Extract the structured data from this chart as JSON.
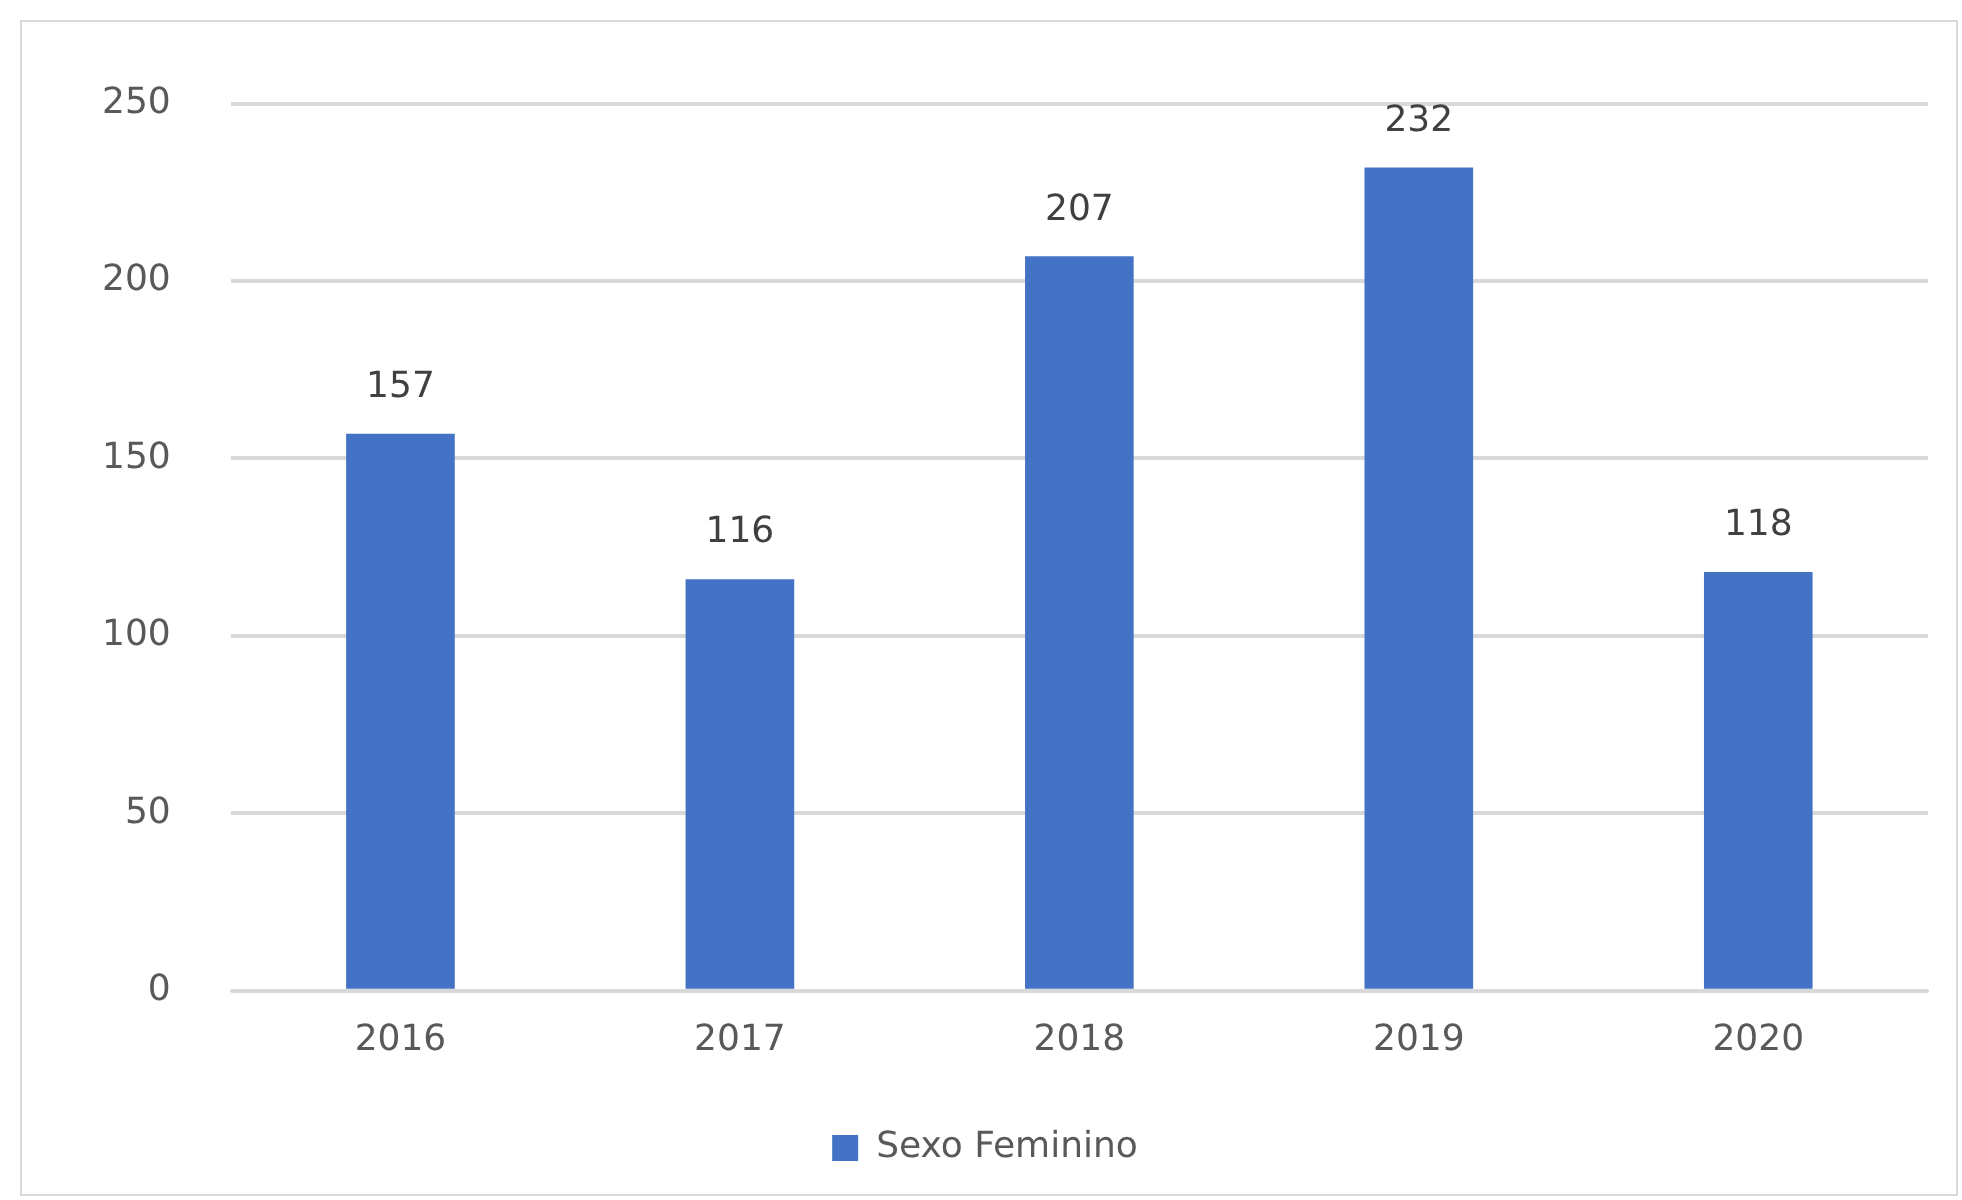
{
  "chart_data": {
    "type": "bar",
    "categories": [
      "2016",
      "2017",
      "2018",
      "2019",
      "2020"
    ],
    "series": [
      {
        "name": "Sexo Feminino",
        "color": "#4472c4",
        "values": [
          157,
          116,
          207,
          232,
          118
        ]
      }
    ],
    "ylim": [
      0,
      250
    ],
    "yticks": [
      0,
      50,
      100,
      150,
      200,
      250
    ],
    "grid": "y",
    "legend": "bottom",
    "data_labels": true
  }
}
